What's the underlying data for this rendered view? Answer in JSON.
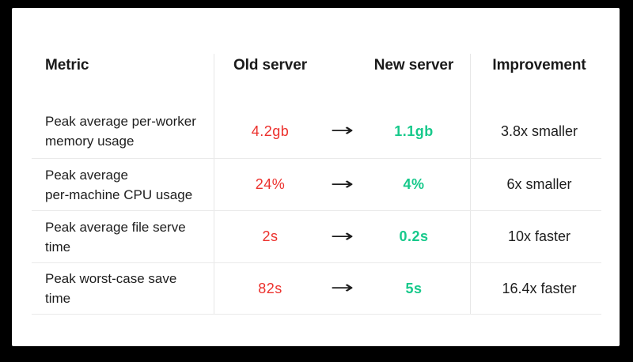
{
  "colors": {
    "frame_background": "#000000",
    "card_background": "#ffffff",
    "old_value_color": "#ec302c",
    "new_value_color": "#17c98b",
    "text_color": "#1d1d1d",
    "divider_color": "#eaeaea"
  },
  "table": {
    "headers": {
      "metric": "Metric",
      "old": "Old server",
      "new": "New server",
      "improvement": "Improvement"
    },
    "arrow": "→",
    "rows": [
      {
        "metric": "Peak average per-worker\nmemory usage",
        "old": "4.2gb",
        "new": "1.1gb",
        "improvement": "3.8x smaller"
      },
      {
        "metric": "Peak average\nper-machine CPU usage",
        "old": "24%",
        "new": "4%",
        "improvement": "6x smaller"
      },
      {
        "metric": "Peak average file serve\ntime",
        "old": "2s",
        "new": "0.2s",
        "improvement": "10x faster"
      },
      {
        "metric": "Peak worst-case save\ntime",
        "old": "82s",
        "new": "5s",
        "improvement": "16.4x faster"
      }
    ]
  }
}
